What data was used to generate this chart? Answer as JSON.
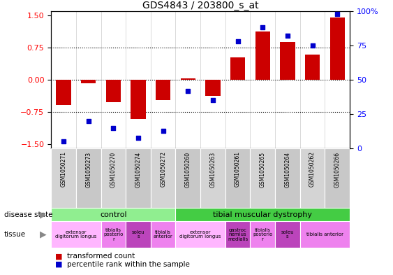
{
  "title": "GDS4843 / 203800_s_at",
  "samples": [
    "GSM1050271",
    "GSM1050273",
    "GSM1050270",
    "GSM1050274",
    "GSM1050272",
    "GSM1050260",
    "GSM1050263",
    "GSM1050261",
    "GSM1050265",
    "GSM1050264",
    "GSM1050262",
    "GSM1050266"
  ],
  "bar_values": [
    -0.58,
    -0.08,
    -0.52,
    -0.92,
    -0.48,
    0.04,
    -0.38,
    0.52,
    1.12,
    0.88,
    0.58,
    1.45
  ],
  "scatter_values": [
    5,
    20,
    15,
    8,
    13,
    42,
    35,
    78,
    88,
    82,
    75,
    98
  ],
  "ylim": [
    -1.6,
    1.6
  ],
  "y2lim": [
    0,
    100
  ],
  "yticks": [
    -1.5,
    -0.75,
    0,
    0.75,
    1.5
  ],
  "y2ticks": [
    0,
    25,
    50,
    75,
    100
  ],
  "dotted_lines": [
    -0.75,
    0,
    0.75
  ],
  "bar_color": "#cc0000",
  "scatter_color": "#0000cc",
  "control_color": "#90ee90",
  "dystrophy_color": "#44cc44",
  "sample_box_color": "#d0d0d0",
  "tissue_labels": [
    {
      "label": "extensor\ndigitorum longus",
      "start": 0,
      "end": 2,
      "color": "#ffb6ff"
    },
    {
      "label": "tibialis\nposterio\nr",
      "start": 2,
      "end": 3,
      "color": "#ee82ee"
    },
    {
      "label": "soleu\ns",
      "start": 3,
      "end": 4,
      "color": "#bb44bb"
    },
    {
      "label": "tibialis\nanterior",
      "start": 4,
      "end": 5,
      "color": "#ee82ee"
    },
    {
      "label": "extensor\ndigitorum longus",
      "start": 5,
      "end": 7,
      "color": "#ffb6ff"
    },
    {
      "label": "gastroc\nnemius\nmedialis",
      "start": 7,
      "end": 8,
      "color": "#bb44bb"
    },
    {
      "label": "tibialis\nposterio\nr",
      "start": 8,
      "end": 9,
      "color": "#ee82ee"
    },
    {
      "label": "soleu\ns",
      "start": 9,
      "end": 10,
      "color": "#bb44bb"
    },
    {
      "label": "tibialis anterior",
      "start": 10,
      "end": 12,
      "color": "#ee82ee"
    }
  ],
  "control_range": [
    0,
    5
  ],
  "dystrophy_range": [
    5,
    12
  ]
}
